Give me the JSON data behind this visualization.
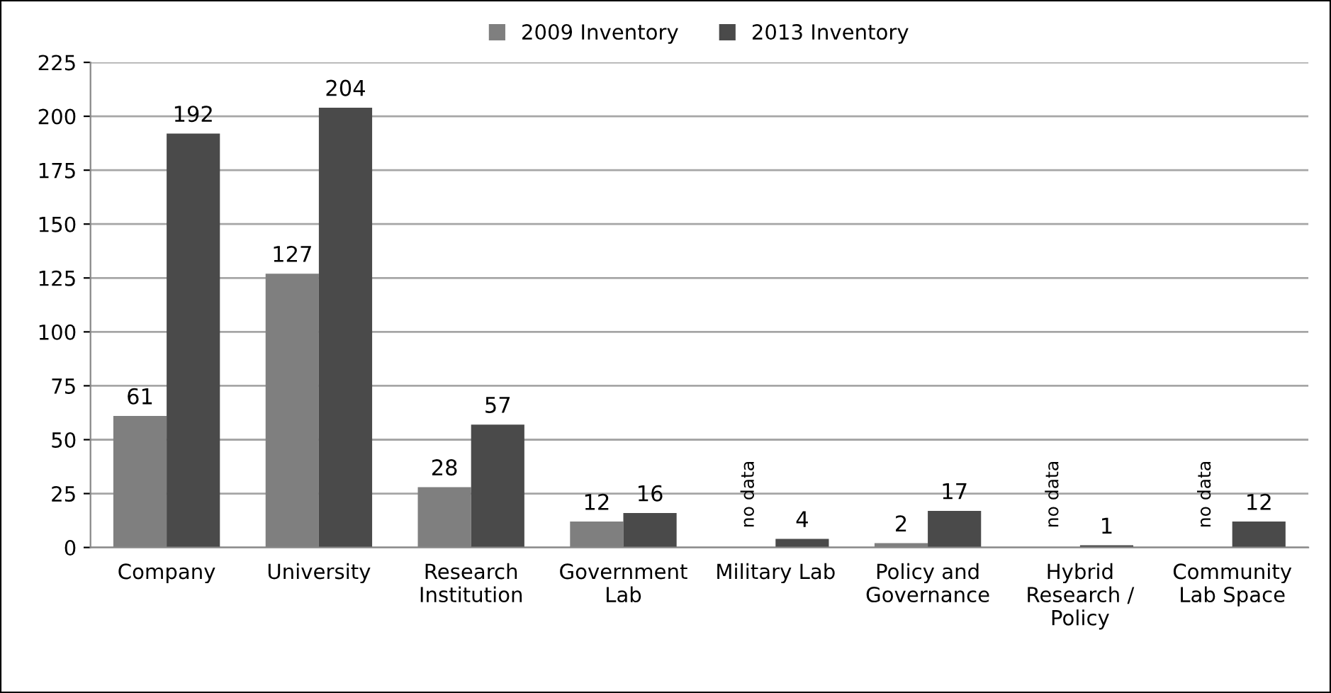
{
  "chart_data": {
    "type": "bar",
    "categories": [
      "Company",
      "University",
      "Research\nInstitution",
      "Government\nLab",
      "Military Lab",
      "Policy and\nGovernance",
      "Hybrid\nResearch /\nPolicy",
      "Community\nLab Space"
    ],
    "series": [
      {
        "name": "2009 Inventory",
        "color": "#7f7f7f",
        "values": [
          61,
          127,
          28,
          12,
          null,
          2,
          null,
          null
        ],
        "value_labels": [
          "61",
          "127",
          "28",
          "12",
          "no data",
          "2",
          "no data",
          "no data"
        ]
      },
      {
        "name": "2013 Inventory",
        "color": "#4a4a4a",
        "values": [
          192,
          204,
          57,
          16,
          4,
          17,
          1,
          12
        ],
        "value_labels": [
          "192",
          "204",
          "57",
          "16",
          "4",
          "17",
          "1",
          "12"
        ]
      }
    ],
    "ylim": [
      0,
      225
    ],
    "yticks": [
      0,
      25,
      50,
      75,
      100,
      125,
      150,
      175,
      200,
      225
    ],
    "grid": "y",
    "legend": "top"
  }
}
